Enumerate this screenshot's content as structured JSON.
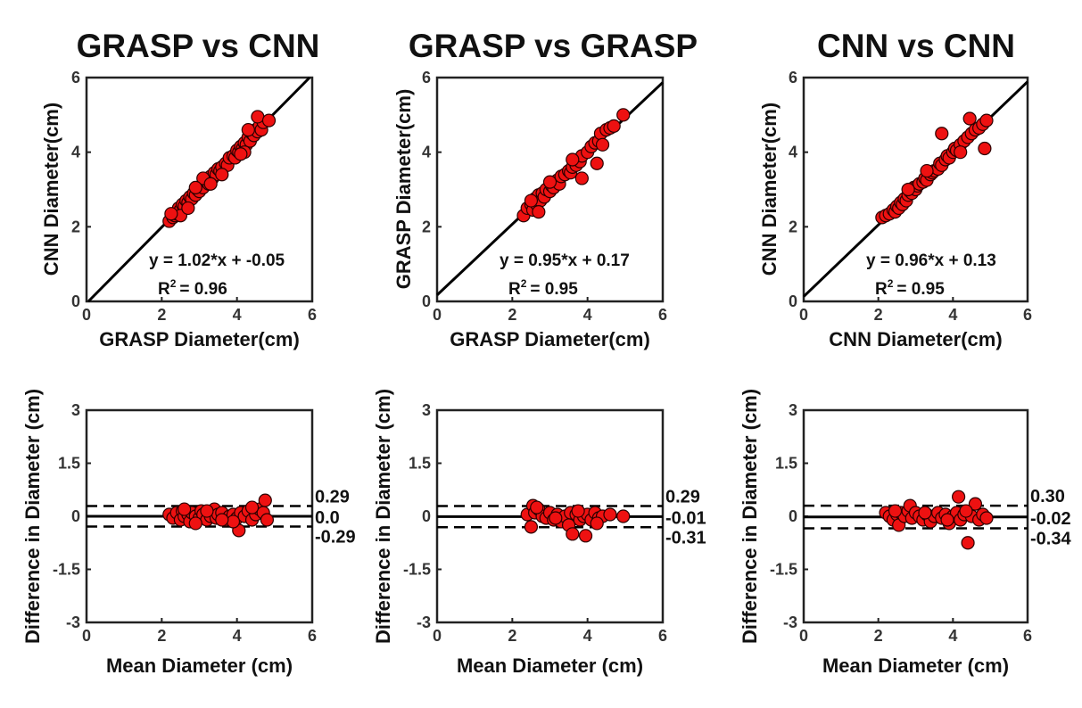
{
  "figure": {
    "titles": [
      "GRASP vs CNN",
      "GRASP vs GRASP",
      "CNN vs CNN"
    ]
  },
  "chart_data": [
    {
      "type": "scatter",
      "panel": "GRASP vs CNN regression",
      "title": "GRASP vs CNN",
      "xlabel": "GRASP Diameter(cm)",
      "ylabel": "CNN Diameter(cm)",
      "xlim": [
        0,
        6
      ],
      "ylim": [
        0,
        6
      ],
      "xticks": [
        "0",
        "2",
        "4",
        "6"
      ],
      "yticks": [
        "0",
        "2",
        "4",
        "6"
      ],
      "fit": {
        "slope": 1.02,
        "intercept": -0.05
      },
      "equation": "y = 1.02*x + -0.05",
      "r2_label": "R",
      "r2_sup": "2",
      "r2_value": "= 0.96",
      "marker_color": "#ee1111",
      "line_color": "#000000",
      "points": [
        [
          2.2,
          2.15
        ],
        [
          2.3,
          2.25
        ],
        [
          2.35,
          2.3
        ],
        [
          2.4,
          2.35
        ],
        [
          2.45,
          2.5
        ],
        [
          2.5,
          2.45
        ],
        [
          2.55,
          2.6
        ],
        [
          2.6,
          2.55
        ],
        [
          2.65,
          2.7
        ],
        [
          2.7,
          2.65
        ],
        [
          2.75,
          2.8
        ],
        [
          2.8,
          2.75
        ],
        [
          2.85,
          2.9
        ],
        [
          2.9,
          2.85
        ],
        [
          2.95,
          3.0
        ],
        [
          3.0,
          2.95
        ],
        [
          3.05,
          3.1
        ],
        [
          3.1,
          3.05
        ],
        [
          3.2,
          3.2
        ],
        [
          3.25,
          3.15
        ],
        [
          3.3,
          3.35
        ],
        [
          3.35,
          3.3
        ],
        [
          3.4,
          3.45
        ],
        [
          3.45,
          3.4
        ],
        [
          3.5,
          3.55
        ],
        [
          3.55,
          3.5
        ],
        [
          3.6,
          3.6
        ],
        [
          3.7,
          3.7
        ],
        [
          3.75,
          3.65
        ],
        [
          3.8,
          3.85
        ],
        [
          3.9,
          3.9
        ],
        [
          3.95,
          3.85
        ],
        [
          4.0,
          4.05
        ],
        [
          4.05,
          4.0
        ],
        [
          4.1,
          4.15
        ],
        [
          4.15,
          4.1
        ],
        [
          4.2,
          4.25
        ],
        [
          4.25,
          4.2
        ],
        [
          4.3,
          4.4
        ],
        [
          4.35,
          4.3
        ],
        [
          4.4,
          4.5
        ],
        [
          4.45,
          4.45
        ],
        [
          4.5,
          4.6
        ],
        [
          4.55,
          4.55
        ],
        [
          4.6,
          4.7
        ],
        [
          4.65,
          4.6
        ],
        [
          4.7,
          4.8
        ],
        [
          4.55,
          4.95
        ],
        [
          4.85,
          4.85
        ],
        [
          2.5,
          2.3
        ],
        [
          2.7,
          2.5
        ],
        [
          3.1,
          3.3
        ],
        [
          3.6,
          3.4
        ],
        [
          4.2,
          4.0
        ],
        [
          4.3,
          4.6
        ],
        [
          4.1,
          3.95
        ],
        [
          2.9,
          3.05
        ],
        [
          3.3,
          3.15
        ],
        [
          2.25,
          2.35
        ]
      ]
    },
    {
      "type": "scatter",
      "panel": "GRASP vs GRASP regression",
      "title": "GRASP vs GRASP",
      "xlabel": "GRASP Diameter(cm)",
      "ylabel": "GRASP Diameter(cm)",
      "xlim": [
        0,
        6
      ],
      "ylim": [
        0,
        6
      ],
      "xticks": [
        "0",
        "2",
        "4",
        "6"
      ],
      "yticks": [
        "0",
        "2",
        "4",
        "6"
      ],
      "fit": {
        "slope": 0.95,
        "intercept": 0.17
      },
      "equation": "y = 0.95*x + 0.17",
      "r2_label": "R",
      "r2_sup": "2",
      "r2_value": "= 0.95",
      "marker_color": "#ee1111",
      "line_color": "#000000",
      "points": [
        [
          2.3,
          2.3
        ],
        [
          2.4,
          2.5
        ],
        [
          2.5,
          2.6
        ],
        [
          2.55,
          2.45
        ],
        [
          2.6,
          2.75
        ],
        [
          2.65,
          2.6
        ],
        [
          2.7,
          2.85
        ],
        [
          2.75,
          2.7
        ],
        [
          2.8,
          2.9
        ],
        [
          2.85,
          2.8
        ],
        [
          2.9,
          3.0
        ],
        [
          3.0,
          2.95
        ],
        [
          3.05,
          3.1
        ],
        [
          3.1,
          3.05
        ],
        [
          3.2,
          3.25
        ],
        [
          3.25,
          3.15
        ],
        [
          3.3,
          3.35
        ],
        [
          3.4,
          3.4
        ],
        [
          3.5,
          3.5
        ],
        [
          3.55,
          3.45
        ],
        [
          3.6,
          3.6
        ],
        [
          3.7,
          3.65
        ],
        [
          3.8,
          3.75
        ],
        [
          3.85,
          3.9
        ],
        [
          4.0,
          4.0
        ],
        [
          4.1,
          4.15
        ],
        [
          4.2,
          4.25
        ],
        [
          4.3,
          4.3
        ],
        [
          4.35,
          4.5
        ],
        [
          4.5,
          4.6
        ],
        [
          4.6,
          4.65
        ],
        [
          4.7,
          4.7
        ],
        [
          4.95,
          5.0
        ],
        [
          4.25,
          3.7
        ],
        [
          3.85,
          3.3
        ],
        [
          2.7,
          2.4
        ],
        [
          3.0,
          3.2
        ],
        [
          3.6,
          3.8
        ],
        [
          4.4,
          4.2
        ],
        [
          2.5,
          2.7
        ]
      ]
    },
    {
      "type": "scatter",
      "panel": "CNN vs CNN regression",
      "title": "CNN vs CNN",
      "xlabel": "CNN Diameter(cm)",
      "ylabel": "CNN Diameter(cm)",
      "xlim": [
        0,
        6
      ],
      "ylim": [
        0,
        6
      ],
      "xticks": [
        "0",
        "2",
        "4",
        "6"
      ],
      "yticks": [
        "0",
        "2",
        "4",
        "6"
      ],
      "fit": {
        "slope": 0.96,
        "intercept": 0.13
      },
      "equation": "y = 0.96*x + 0.13",
      "r2_label": "R",
      "r2_sup": "2",
      "r2_value": "= 0.95",
      "marker_color": "#ee1111",
      "line_color": "#000000",
      "points": [
        [
          2.1,
          2.25
        ],
        [
          2.2,
          2.3
        ],
        [
          2.3,
          2.35
        ],
        [
          2.4,
          2.45
        ],
        [
          2.45,
          2.4
        ],
        [
          2.5,
          2.55
        ],
        [
          2.55,
          2.5
        ],
        [
          2.6,
          2.65
        ],
        [
          2.65,
          2.6
        ],
        [
          2.7,
          2.75
        ],
        [
          2.75,
          2.7
        ],
        [
          2.8,
          2.85
        ],
        [
          2.85,
          2.95
        ],
        [
          2.9,
          2.9
        ],
        [
          2.95,
          3.05
        ],
        [
          3.0,
          3.0
        ],
        [
          3.05,
          3.1
        ],
        [
          3.1,
          3.15
        ],
        [
          3.2,
          3.2
        ],
        [
          3.25,
          3.3
        ],
        [
          3.3,
          3.25
        ],
        [
          3.4,
          3.4
        ],
        [
          3.45,
          3.45
        ],
        [
          3.5,
          3.5
        ],
        [
          3.6,
          3.55
        ],
        [
          3.65,
          3.7
        ],
        [
          3.7,
          3.65
        ],
        [
          3.8,
          3.8
        ],
        [
          3.85,
          3.9
        ],
        [
          3.9,
          3.85
        ],
        [
          4.0,
          4.0
        ],
        [
          4.05,
          4.1
        ],
        [
          4.1,
          4.05
        ],
        [
          4.2,
          4.2
        ],
        [
          4.3,
          4.3
        ],
        [
          4.4,
          4.4
        ],
        [
          4.5,
          4.5
        ],
        [
          4.6,
          4.6
        ],
        [
          4.7,
          4.65
        ],
        [
          4.8,
          4.75
        ],
        [
          4.9,
          4.85
        ],
        [
          4.45,
          4.9
        ],
        [
          4.85,
          4.1
        ],
        [
          3.7,
          4.5
        ],
        [
          2.8,
          3.0
        ],
        [
          3.3,
          3.5
        ],
        [
          4.2,
          4.0
        ]
      ]
    },
    {
      "type": "scatter",
      "panel": "GRASP vs CNN Bland-Altman",
      "xlabel": "Mean Diameter (cm)",
      "ylabel": "Difference in Diameter (cm)",
      "xlim": [
        0,
        6
      ],
      "ylim": [
        -3,
        3
      ],
      "xticks": [
        "0",
        "2",
        "4",
        "6"
      ],
      "yticks": [
        "3",
        "1.5",
        "0",
        "-1.5",
        "-3"
      ],
      "mean_diff": 0.0,
      "upper_loa": 0.29,
      "lower_loa": -0.29,
      "mean_label": "0.0",
      "upper_label": "0.29",
      "lower_label": "-0.29",
      "marker_color": "#ee1111",
      "points": [
        [
          2.2,
          0.05
        ],
        [
          2.3,
          -0.05
        ],
        [
          2.4,
          0.1
        ],
        [
          2.5,
          -0.1
        ],
        [
          2.55,
          0.15
        ],
        [
          2.6,
          0.0
        ],
        [
          2.7,
          0.05
        ],
        [
          2.75,
          -0.15
        ],
        [
          2.8,
          0.1
        ],
        [
          2.9,
          0.0
        ],
        [
          3.0,
          -0.05
        ],
        [
          3.05,
          0.15
        ],
        [
          3.1,
          0.05
        ],
        [
          3.2,
          -0.1
        ],
        [
          3.3,
          0.0
        ],
        [
          3.4,
          0.2
        ],
        [
          3.45,
          -0.05
        ],
        [
          3.5,
          0.05
        ],
        [
          3.6,
          0.1
        ],
        [
          3.7,
          -0.1
        ],
        [
          3.8,
          0.0
        ],
        [
          3.9,
          0.05
        ],
        [
          4.0,
          -0.05
        ],
        [
          4.05,
          -0.4
        ],
        [
          4.1,
          0.1
        ],
        [
          4.2,
          0.0
        ],
        [
          4.3,
          0.15
        ],
        [
          4.4,
          -0.1
        ],
        [
          4.5,
          0.05
        ],
        [
          4.6,
          0.2
        ],
        [
          4.7,
          0.1
        ],
        [
          4.75,
          0.45
        ],
        [
          4.8,
          -0.1
        ],
        [
          2.6,
          0.2
        ],
        [
          3.2,
          0.15
        ],
        [
          3.9,
          -0.15
        ],
        [
          4.4,
          0.25
        ],
        [
          2.9,
          -0.2
        ],
        [
          3.6,
          -0.1
        ]
      ]
    },
    {
      "type": "scatter",
      "panel": "GRASP vs GRASP Bland-Altman",
      "xlabel": "Mean Diameter (cm)",
      "ylabel": "Difference in Diameter (cm)",
      "xlim": [
        0,
        6
      ],
      "ylim": [
        -3,
        3
      ],
      "xticks": [
        "0",
        "2",
        "4",
        "6"
      ],
      "yticks": [
        "3",
        "1.5",
        "0",
        "-1.5",
        "-3"
      ],
      "mean_diff": -0.01,
      "upper_loa": 0.29,
      "lower_loa": -0.31,
      "mean_label": "-0.01",
      "upper_label": "0.29",
      "lower_label": "-0.31",
      "marker_color": "#ee1111",
      "points": [
        [
          2.4,
          0.05
        ],
        [
          2.5,
          -0.3
        ],
        [
          2.55,
          0.3
        ],
        [
          2.6,
          0.1
        ],
        [
          2.7,
          0.2
        ],
        [
          2.8,
          0.0
        ],
        [
          2.9,
          -0.05
        ],
        [
          3.0,
          0.1
        ],
        [
          3.1,
          -0.1
        ],
        [
          3.2,
          0.05
        ],
        [
          3.3,
          -0.15
        ],
        [
          3.4,
          0.0
        ],
        [
          3.5,
          -0.25
        ],
        [
          3.55,
          0.1
        ],
        [
          3.6,
          -0.5
        ],
        [
          3.7,
          0.05
        ],
        [
          3.8,
          -0.1
        ],
        [
          3.9,
          0.0
        ],
        [
          3.95,
          -0.55
        ],
        [
          4.0,
          0.05
        ],
        [
          4.1,
          -0.1
        ],
        [
          4.2,
          0.1
        ],
        [
          4.3,
          -0.05
        ],
        [
          4.4,
          0.0
        ],
        [
          4.6,
          0.05
        ],
        [
          4.95,
          0.0
        ],
        [
          2.65,
          0.25
        ],
        [
          3.15,
          -0.05
        ],
        [
          3.75,
          0.15
        ],
        [
          4.25,
          -0.2
        ]
      ]
    },
    {
      "type": "scatter",
      "panel": "CNN vs CNN Bland-Altman",
      "xlabel": "Mean Diameter (cm)",
      "ylabel": "Difference in Diameter (cm)",
      "xlim": [
        0,
        6
      ],
      "ylim": [
        -3,
        3
      ],
      "xticks": [
        "0",
        "2",
        "4",
        "6"
      ],
      "yticks": [
        "3",
        "1.5",
        "0",
        "-1.5",
        "-3"
      ],
      "mean_diff": -0.02,
      "upper_loa": 0.3,
      "lower_loa": -0.34,
      "mean_label": "-0.02",
      "upper_label": "0.30",
      "lower_label": "-0.34",
      "marker_color": "#ee1111",
      "points": [
        [
          2.2,
          0.1
        ],
        [
          2.3,
          0.0
        ],
        [
          2.4,
          -0.1
        ],
        [
          2.5,
          0.05
        ],
        [
          2.55,
          -0.25
        ],
        [
          2.6,
          0.1
        ],
        [
          2.7,
          0.0
        ],
        [
          2.8,
          0.15
        ],
        [
          2.85,
          0.3
        ],
        [
          2.9,
          -0.05
        ],
        [
          3.0,
          0.1
        ],
        [
          3.1,
          0.0
        ],
        [
          3.2,
          -0.1
        ],
        [
          3.3,
          0.05
        ],
        [
          3.4,
          -0.15
        ],
        [
          3.5,
          0.0
        ],
        [
          3.6,
          0.1
        ],
        [
          3.7,
          -0.05
        ],
        [
          3.8,
          0.05
        ],
        [
          3.9,
          -0.2
        ],
        [
          4.0,
          0.0
        ],
        [
          4.1,
          0.1
        ],
        [
          4.15,
          0.55
        ],
        [
          4.2,
          -0.1
        ],
        [
          4.3,
          0.05
        ],
        [
          4.4,
          -0.75
        ],
        [
          4.5,
          0.0
        ],
        [
          4.6,
          0.35
        ],
        [
          4.7,
          -0.1
        ],
        [
          4.8,
          0.05
        ],
        [
          4.9,
          -0.05
        ],
        [
          2.45,
          0.15
        ],
        [
          3.25,
          0.1
        ],
        [
          3.85,
          -0.1
        ],
        [
          4.35,
          0.15
        ]
      ]
    }
  ]
}
